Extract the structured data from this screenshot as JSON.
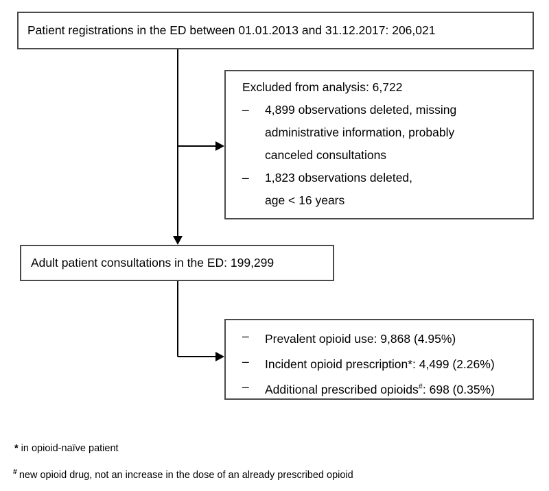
{
  "colors": {
    "background": "#ffffff",
    "box_border": "#4a4a4a",
    "line": "#000000",
    "text": "#000000"
  },
  "boxes": {
    "registrations": {
      "text": "Patient registrations in the ED between 01.01.2013 and 31.12.2017: 206,021"
    },
    "excluded": {
      "title": "Excluded from analysis: 6,722",
      "bullet": "–",
      "items": [
        {
          "lines": [
            "4,899 observations deleted, missing",
            "administrative information, probably",
            "canceled consultations"
          ]
        },
        {
          "lines": [
            "1,823 observations deleted,",
            "age < 16 years"
          ]
        }
      ]
    },
    "adult": {
      "text": "Adult patient consultations in the ED: 199,299"
    },
    "opioid": {
      "bullet": "–",
      "items": [
        {
          "pre": "Prevalent opioid use: 9,868 (4.95%)",
          "sup": "",
          "post": ""
        },
        {
          "pre": "Incident opioid prescription*: 4,499 (2.26%)",
          "sup": "",
          "post": ""
        },
        {
          "pre": "Additional prescribed opioids",
          "sup": "#",
          "post": ": 698 (0.35%)"
        }
      ]
    }
  },
  "footnotes": [
    {
      "marker": "*",
      "text": "in opioid-naïve patient"
    },
    {
      "marker": "#",
      "text": "new opioid drug, not an increase in the dose of an already prescribed opioid"
    }
  ]
}
